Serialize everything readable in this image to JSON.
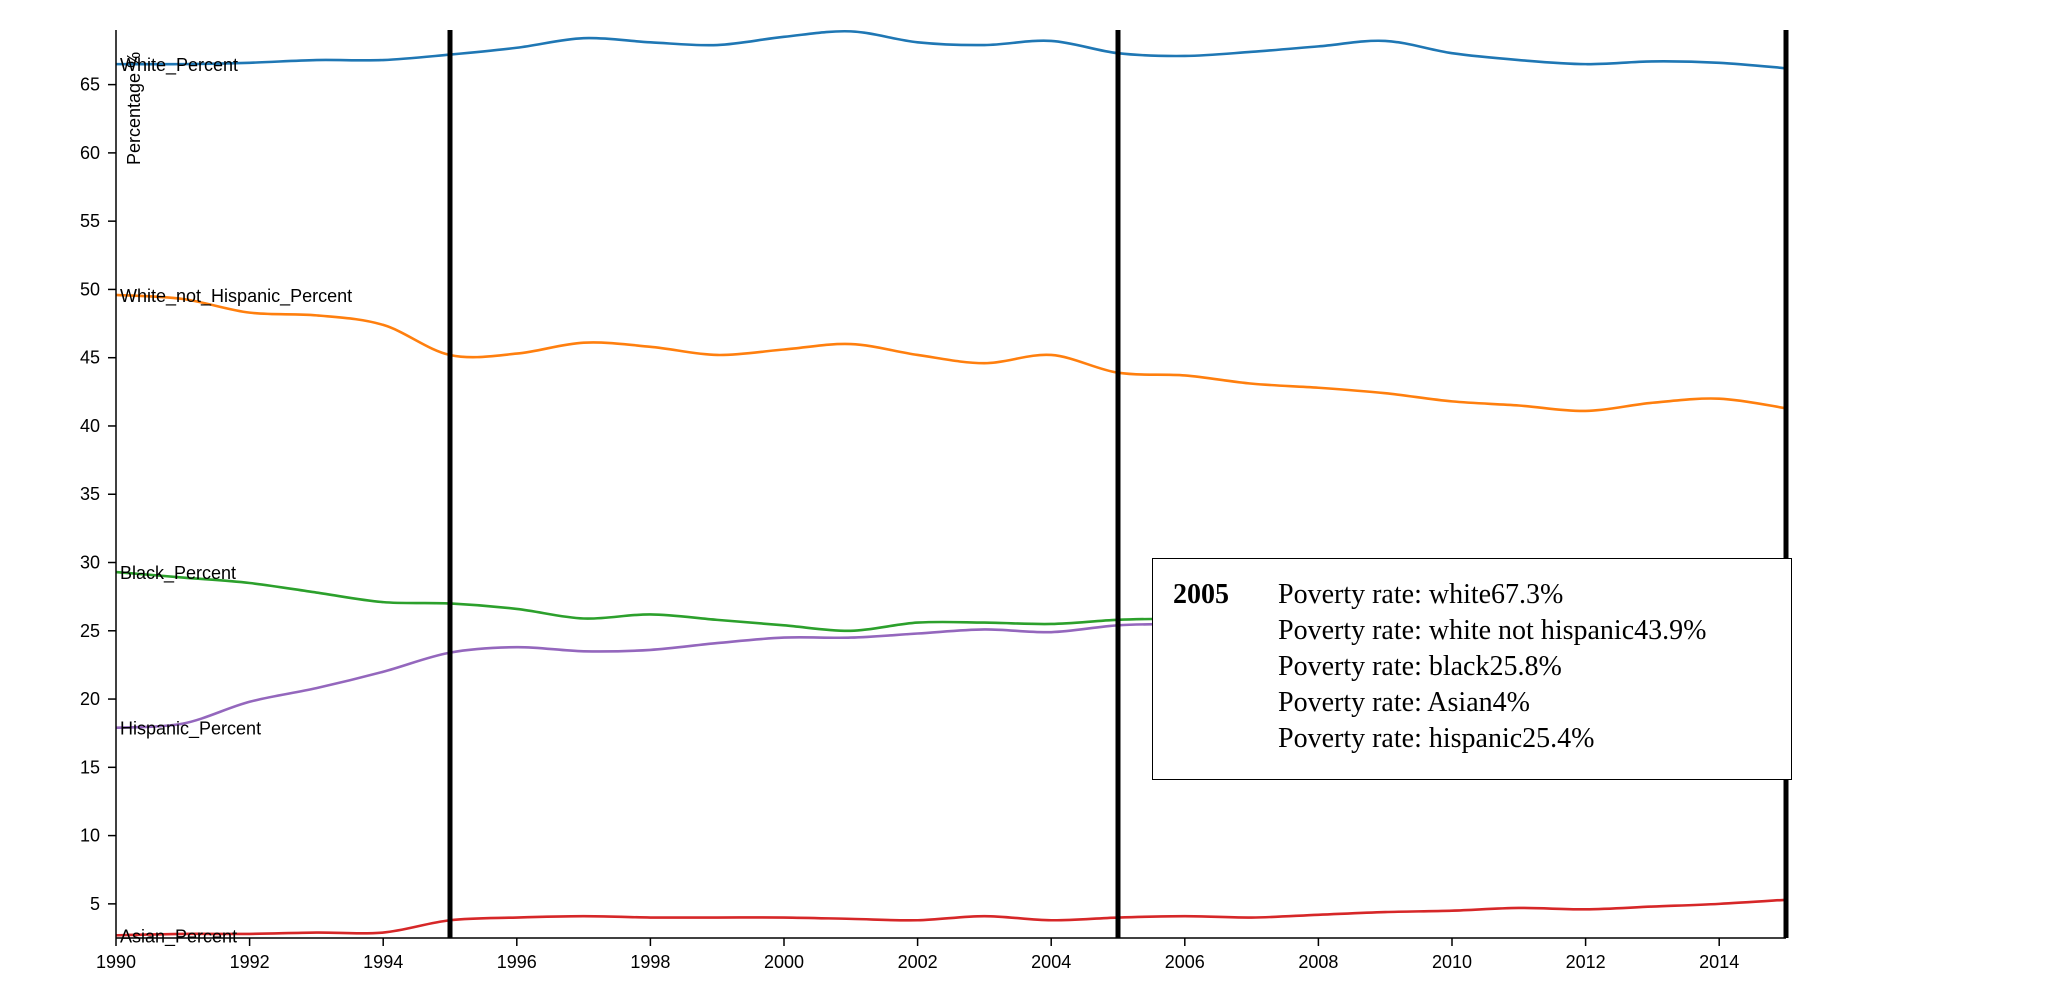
{
  "chart_data": {
    "type": "line",
    "title": "",
    "xlabel": "",
    "ylabel": "Percentage %",
    "xlim": [
      1990,
      2015
    ],
    "ylim": [
      2.5,
      69
    ],
    "x_ticks": [
      "1990",
      "1992",
      "1994",
      "1996",
      "1998",
      "2000",
      "2002",
      "2004",
      "2006",
      "2008",
      "2010",
      "2012",
      "2014"
    ],
    "y_ticks": [
      "5",
      "10",
      "15",
      "20",
      "25",
      "30",
      "35",
      "40",
      "45",
      "50",
      "55",
      "60",
      "65"
    ],
    "grid": false,
    "legend": "inline labels at left end of each line",
    "x": [
      1990,
      1991,
      1992,
      1993,
      1994,
      1995,
      1996,
      1997,
      1998,
      1999,
      2000,
      2001,
      2002,
      2003,
      2004,
      2005,
      2006,
      2007,
      2008,
      2009,
      2010,
      2011,
      2012,
      2013,
      2014,
      2015
    ],
    "series": [
      {
        "name": "White_Percent",
        "color": "#1f77b4",
        "values": [
          66.5,
          66.5,
          66.6,
          66.8,
          66.8,
          67.2,
          67.7,
          68.4,
          68.1,
          67.9,
          68.5,
          68.9,
          68.1,
          67.9,
          68.2,
          67.3,
          67.1,
          67.4,
          67.8,
          68.2,
          67.3,
          66.8,
          66.5,
          66.7,
          66.6,
          66.2
        ]
      },
      {
        "name": "White_not_Hispanic_Percent",
        "color": "#ff7f0e",
        "values": [
          49.6,
          49.3,
          48.3,
          48.1,
          47.4,
          45.2,
          45.3,
          46.1,
          45.8,
          45.2,
          45.6,
          46.0,
          45.2,
          44.6,
          45.2,
          43.9,
          43.7,
          43.1,
          42.8,
          42.4,
          41.8,
          41.5,
          41.1,
          41.7,
          42.0,
          41.3
        ]
      },
      {
        "name": "Black_Percent",
        "color": "#2ca02c",
        "values": [
          29.3,
          28.9,
          28.5,
          27.8,
          27.1,
          27.0,
          26.6,
          25.9,
          26.2,
          25.8,
          25.4,
          25.0,
          25.6,
          25.6,
          25.5,
          25.8,
          25.9,
          25.9,
          25.9,
          25.9,
          25.9,
          25.9,
          25.9,
          25.9,
          25.9,
          25.9
        ]
      },
      {
        "name": "Hispanic_Percent",
        "color": "#9467bd",
        "values": [
          17.9,
          18.2,
          19.8,
          20.8,
          22.0,
          23.4,
          23.8,
          23.5,
          23.6,
          24.1,
          24.5,
          24.5,
          24.8,
          25.1,
          24.9,
          25.4,
          25.5,
          25.5,
          25.5,
          25.5,
          25.5,
          25.5,
          25.5,
          25.5,
          25.5,
          25.5
        ]
      },
      {
        "name": "Asian_Percent",
        "color": "#d62728",
        "values": [
          2.7,
          2.8,
          2.8,
          2.9,
          2.9,
          3.8,
          4.0,
          4.1,
          4.0,
          4.0,
          4.0,
          3.9,
          3.8,
          4.1,
          3.8,
          4.0,
          4.1,
          4.0,
          4.2,
          4.4,
          4.5,
          4.7,
          4.6,
          4.8,
          5.0,
          5.3
        ]
      }
    ],
    "vertical_markers": [
      1995,
      2005,
      2015
    ]
  },
  "tooltip": {
    "year": "2005",
    "rows": [
      "Poverty rate: white67.3%",
      "Poverty rate: white not hispanic43.9%",
      "Poverty rate: black25.8%",
      "Poverty rate: Asian4%",
      "Poverty rate: hispanic25.4%"
    ]
  }
}
